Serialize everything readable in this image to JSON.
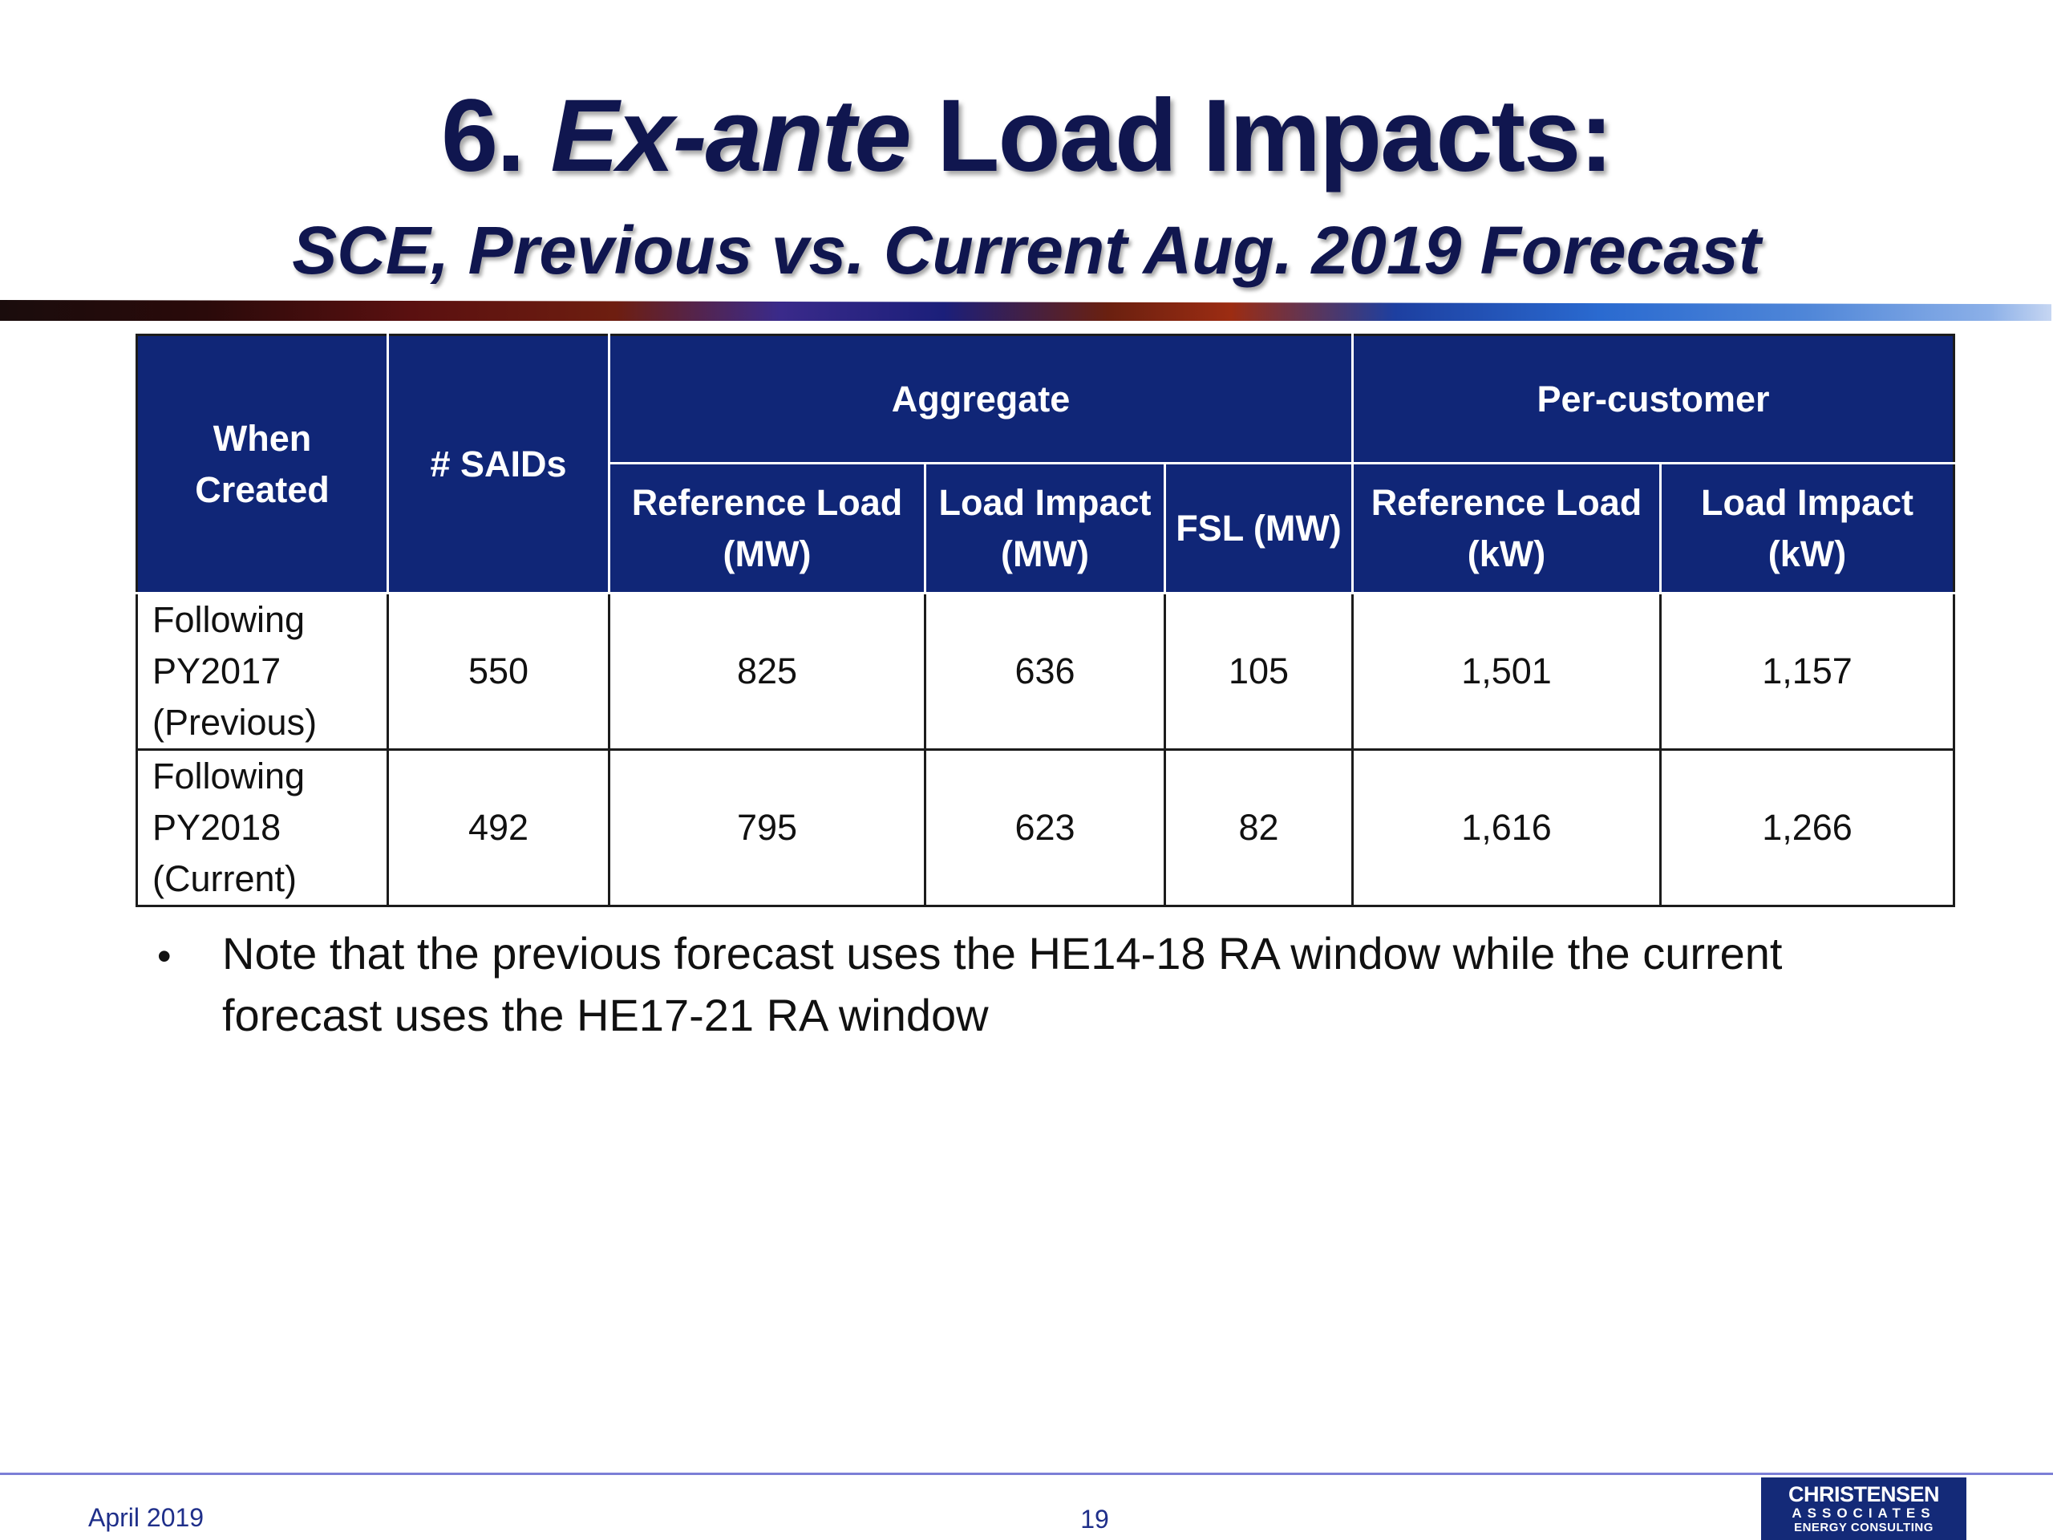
{
  "slide": {
    "title_number": "6.",
    "title_italic": "Ex-ante",
    "title_rest": "Load Impacts:",
    "subtitle": "SCE, Previous vs. Current Aug. 2019 Forecast"
  },
  "table": {
    "headers": {
      "when_created": "When Created",
      "saids": "# SAIDs",
      "aggregate": "Aggregate",
      "per_customer": "Per-customer",
      "agg_ref_load": "Reference Load (MW)",
      "agg_load_impact": "Load Impact (MW)",
      "agg_fsl": "FSL (MW)",
      "pc_ref_load": "Reference Load (kW)",
      "pc_load_impact": "Load Impact (kW)"
    },
    "rows": [
      {
        "when_created": "Following PY2017 (Previous)",
        "saids": "550",
        "agg_ref_load": "825",
        "agg_load_impact": "636",
        "agg_fsl": "105",
        "pc_ref_load": "1,501",
        "pc_load_impact": "1,157"
      },
      {
        "when_created": "Following PY2018 (Current)",
        "saids": "492",
        "agg_ref_load": "795",
        "agg_load_impact": "623",
        "agg_fsl": "82",
        "pc_ref_load": "1,616",
        "pc_load_impact": "1,266"
      }
    ]
  },
  "note": {
    "bullet": "•",
    "text": "Note that the previous forecast uses the HE14-18 RA window while the current forecast uses the HE17-21 RA window"
  },
  "footer": {
    "date": "April 2019",
    "page": "19",
    "logo_line1": "CHRISTENSEN",
    "logo_line2": "ASSOCIATES",
    "logo_line3": "ENERGY CONSULTING"
  },
  "colors": {
    "title": "#10164f",
    "table_header": "#102677",
    "footer_text": "#1f2f8a",
    "footer_line": "#7c7fd6"
  }
}
